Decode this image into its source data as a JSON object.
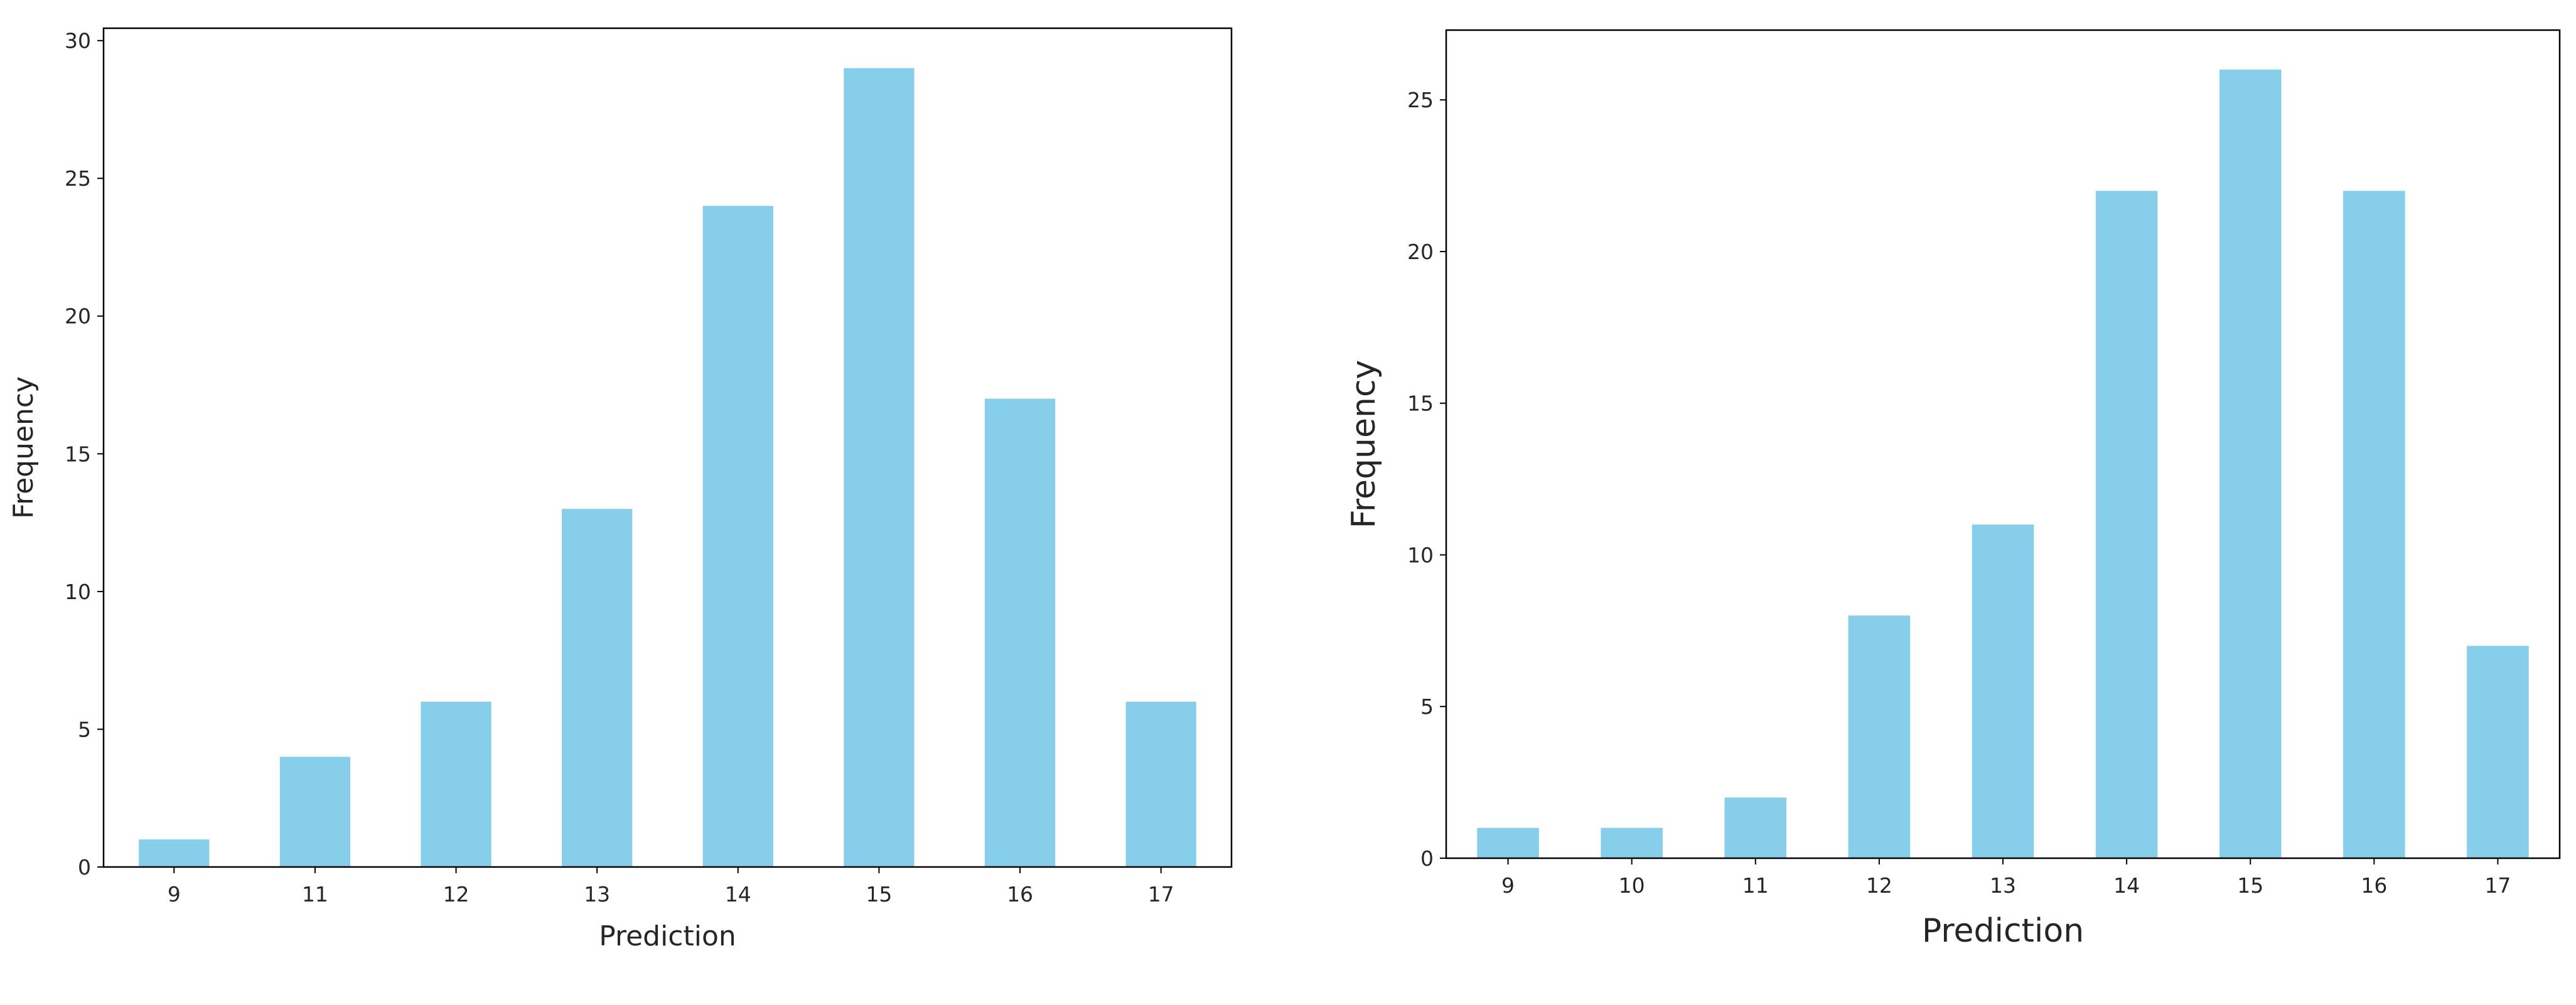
{
  "chart_data": [
    {
      "type": "bar",
      "categories": [
        "9",
        "11",
        "12",
        "13",
        "14",
        "15",
        "16",
        "17"
      ],
      "values": [
        1,
        4,
        6,
        13,
        24,
        29,
        17,
        6
      ],
      "title": "",
      "xlabel": "Prediction",
      "ylabel": "Frequency",
      "ylim": [
        0,
        30.45
      ],
      "yticks": [
        0,
        5,
        10,
        15,
        20,
        25,
        30
      ],
      "bar_color": "#87CEEB",
      "grid": false,
      "legend": "none"
    },
    {
      "type": "bar",
      "categories": [
        "9",
        "10",
        "11",
        "12",
        "13",
        "14",
        "15",
        "16",
        "17"
      ],
      "values": [
        1,
        1,
        2,
        8,
        11,
        22,
        26,
        22,
        7
      ],
      "title": "",
      "xlabel": "Prediction",
      "ylabel": "Frequency",
      "ylim": [
        0,
        27.3
      ],
      "yticks": [
        0,
        5,
        10,
        15,
        20,
        25
      ],
      "bar_color": "#87CEEB",
      "grid": false,
      "legend": "none"
    }
  ]
}
